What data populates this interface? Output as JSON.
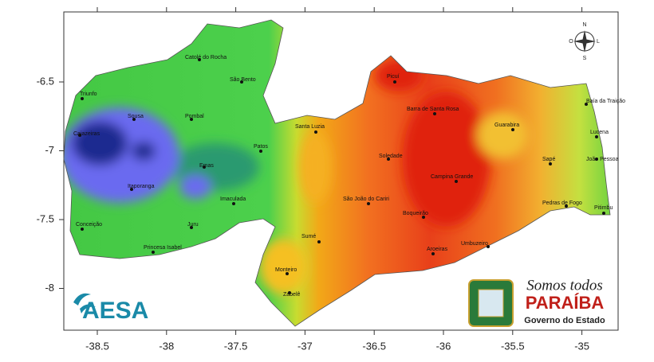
{
  "map": {
    "axes": {
      "xticks": [
        -38.5,
        -38,
        -37.5,
        -37,
        -36.5,
        -36,
        -35.5,
        -35
      ],
      "yticks": [
        -6.5,
        -7,
        -7.5,
        -8
      ]
    },
    "cities": [
      "Triunfo",
      "Cajazeiras",
      "Sousa",
      "Catolé do Rocha",
      "São Bento",
      "Pombal",
      "Patos",
      "Emas",
      "Itaporanga",
      "Conceição",
      "Juru",
      "Princesa Isabel",
      "Imaculada",
      "Santa Luzia",
      "São João do Cariri",
      "Sumé",
      "Monteiro",
      "Zabelê",
      "Picuí",
      "Barra de Santa Rosa",
      "Soledade",
      "Campina Grande",
      "Boqueirão",
      "Aroeiras",
      "Umbuzeiro",
      "Guarabira",
      "Sapé",
      "Pedras de Fogo",
      "Baía da Traição",
      "Lucena",
      "João Pessoa",
      "Pitimbu"
    ],
    "compass": [
      "N",
      "S",
      "L",
      "O"
    ],
    "logos": {
      "aesa": "AESA",
      "slogan": "Somos todos",
      "state": "PARAÍBA",
      "government": "Governo do Estado"
    }
  }
}
